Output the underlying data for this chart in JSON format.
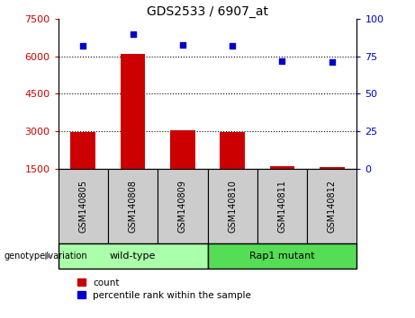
{
  "title": "GDS2533 / 6907_at",
  "samples": [
    "GSM140805",
    "GSM140808",
    "GSM140809",
    "GSM140810",
    "GSM140811",
    "GSM140812"
  ],
  "bar_values": [
    2950,
    6100,
    3050,
    2950,
    1600,
    1550
  ],
  "bar_bottom": 1500,
  "scatter_values": [
    82,
    90,
    83,
    82,
    72,
    71
  ],
  "bar_color": "#cc0000",
  "scatter_color": "#0000cc",
  "ylim_left": [
    1500,
    7500
  ],
  "ylim_right": [
    0,
    100
  ],
  "yticks_left": [
    1500,
    3000,
    4500,
    6000,
    7500
  ],
  "yticks_right": [
    0,
    25,
    50,
    75,
    100
  ],
  "groups": [
    {
      "label": "wild-type",
      "indices": [
        0,
        1,
        2
      ],
      "color": "#aaffaa"
    },
    {
      "label": "Rap1 mutant",
      "indices": [
        3,
        4,
        5
      ],
      "color": "#55dd55"
    }
  ],
  "group_label": "genotype/variation",
  "legend_count_label": "count",
  "legend_pct_label": "percentile rank within the sample",
  "bar_width": 0.5,
  "grid_lines": [
    3000,
    4500,
    6000
  ],
  "tick_label_bg": "#cccccc"
}
